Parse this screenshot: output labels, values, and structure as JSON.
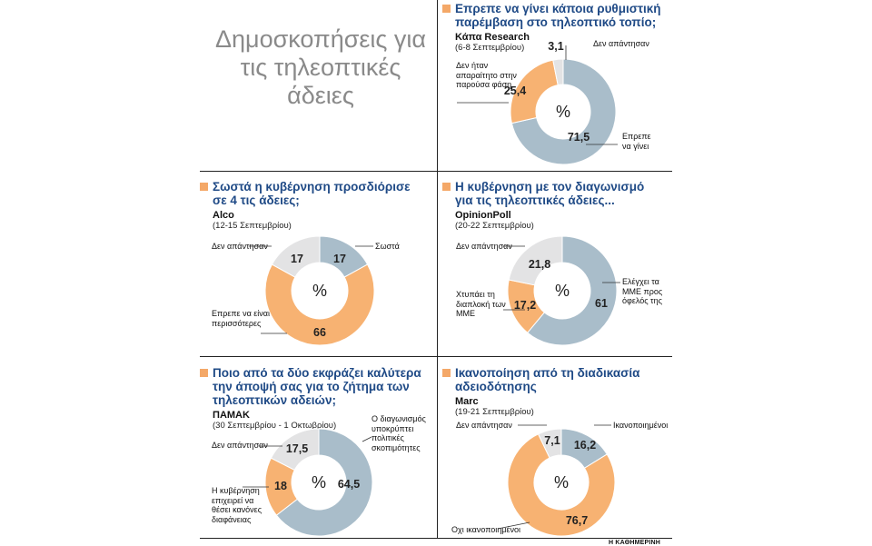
{
  "title": "Δημοσκοπήσεις για τις τηλεοπτικές άδειες",
  "credit": "Η ΚΑΘΗΜΕΡΙΝΗ",
  "colors": {
    "blue": "#a9bdca",
    "orange": "#f7b272",
    "grey": "#e3e3e4",
    "question": "#1f4a86",
    "accent": "#f4a868"
  },
  "chart_data": [
    {
      "type": "pie",
      "question": "Επρεπε να γίνει κάποια ρυθμιστική παρέμβαση στο τηλεοπτικό τοπίο;",
      "source": "Κάπα Research",
      "date": "(6-8 Σεπτεμβρίου)",
      "center_label": "%",
      "slices": [
        {
          "label": "Επρεπε να γίνει",
          "value": 71.5,
          "display": "71,5",
          "color": "blue"
        },
        {
          "label": "Δεν ήταν απαραίτητο στην παρούσα φάση",
          "value": 25.4,
          "display": "25,4",
          "color": "orange"
        },
        {
          "label": "Δεν απάντησαν",
          "value": 3.1,
          "display": "3,1",
          "color": "grey"
        }
      ]
    },
    {
      "type": "pie",
      "question": "Σωστά η κυβέρνηση προσδιόρισε σε 4 τις άδειες;",
      "source": "Alco",
      "date": "(12-15 Σεπτεμβρίου)",
      "center_label": "%",
      "slices": [
        {
          "label": "Σωστά",
          "value": 17,
          "display": "17",
          "color": "blue"
        },
        {
          "label": "Επρεπε να είναι περισσότερες",
          "value": 66,
          "display": "66",
          "color": "orange"
        },
        {
          "label": "Δεν απάντησαν",
          "value": 17,
          "display": "17",
          "color": "grey"
        }
      ]
    },
    {
      "type": "pie",
      "question": "Η κυβέρνηση με τον διαγωνισμό για τις τηλεοπτικές άδειες...",
      "source": "OpinionPoll",
      "date": "(20-22 Σεπτεμβρίου)",
      "center_label": "%",
      "slices": [
        {
          "label": "Ελέγχει τα ΜΜΕ προς όφελός της",
          "value": 61,
          "display": "61",
          "color": "blue"
        },
        {
          "label": "Χτυπάει τη διαπλοκή των ΜΜΕ",
          "value": 17.2,
          "display": "17,2",
          "color": "orange"
        },
        {
          "label": "Δεν απάντησαν",
          "value": 21.8,
          "display": "21,8",
          "color": "grey"
        }
      ]
    },
    {
      "type": "pie",
      "question": "Ποιο από τα δύο εκφράζει καλύτερα την άποψή σας για το ζήτημα των τηλεοπτικών αδειών;",
      "source": "ΠΑΜΑΚ",
      "date": "(30 Σεπτεμβρίου - 1 Οκτωβρίου)",
      "center_label": "%",
      "slices": [
        {
          "label": "Ο διαγωνισμός υποκρύπτει πολιτικές σκοπιμότητες",
          "value": 64.5,
          "display": "64,5",
          "color": "blue"
        },
        {
          "label": "Η κυβέρνηση επιχειρεί να θέσει κανόνες διαφάνειας",
          "value": 18,
          "display": "18",
          "color": "orange"
        },
        {
          "label": "Δεν απάντησαν",
          "value": 17.5,
          "display": "17,5",
          "color": "grey"
        }
      ]
    },
    {
      "type": "pie",
      "question": "Ικανοποίηση από τη διαδικασία αδειοδότησης",
      "source": "Marc",
      "date": "(19-21 Σεπτεμβρίου)",
      "center_label": "%",
      "slices": [
        {
          "label": "Ικανοποιημένοι",
          "value": 16.2,
          "display": "16,2",
          "color": "blue"
        },
        {
          "label": "Οχι ικανοποιημένοι",
          "value": 76.7,
          "display": "76,7",
          "color": "orange"
        },
        {
          "label": "Δεν απάντησαν",
          "value": 7.1,
          "display": "7,1",
          "color": "grey"
        }
      ]
    }
  ]
}
